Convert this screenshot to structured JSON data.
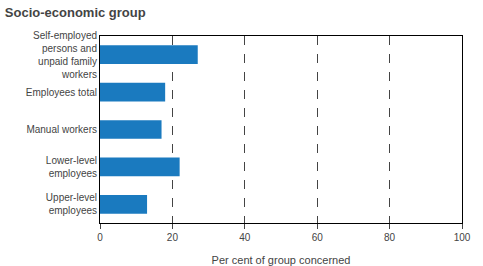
{
  "chart_data": {
    "type": "bar",
    "orientation": "horizontal",
    "title": "Socio-economic group",
    "categories": [
      "Upper-level\nemployees",
      "Lower-level\nemployees",
      "Manual workers",
      "Employees total",
      "Self-employed\npersons and\nunpaid family\nworkers"
    ],
    "values": [
      13,
      22,
      17,
      18,
      27
    ],
    "color": "#1a7abf",
    "xlabel": "Per cent of group concerned",
    "xlim": [
      0,
      100
    ],
    "xticks": [
      0,
      20,
      40,
      60,
      80,
      100
    ],
    "grid": true
  }
}
